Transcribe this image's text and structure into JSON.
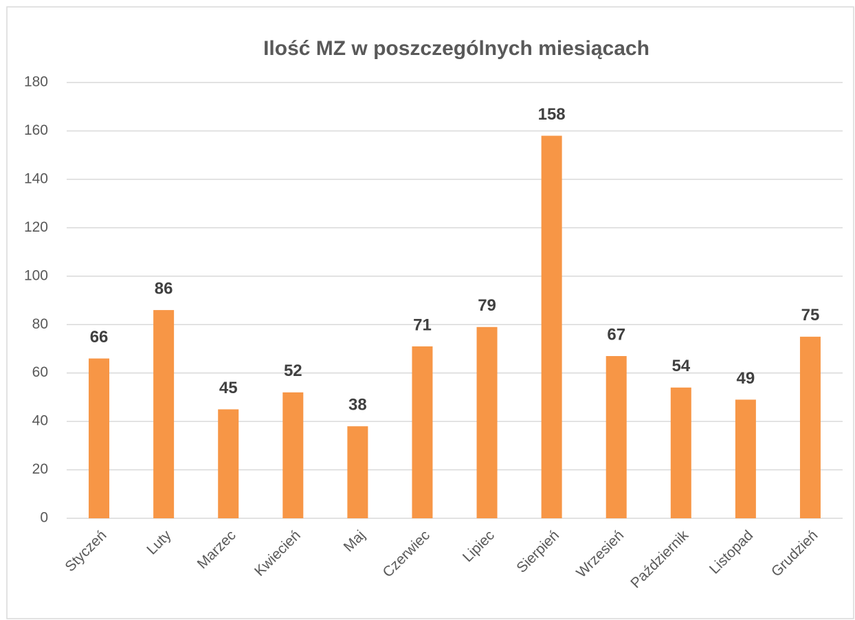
{
  "chart_data": {
    "type": "bar",
    "title": "Ilość MZ w poszczególnych miesiącach",
    "categories": [
      "Styczeń",
      "Luty",
      "Marzec",
      "Kwiecień",
      "Maj",
      "Czerwiec",
      "Lipiec",
      "Sierpień",
      "Wrzesień",
      "Październik",
      "Listopad",
      "Grudzień"
    ],
    "values": [
      66,
      86,
      45,
      52,
      38,
      71,
      79,
      158,
      67,
      54,
      49,
      75
    ],
    "color": "#f79646",
    "ylim": [
      0,
      180
    ],
    "yticks": [
      0,
      20,
      40,
      60,
      80,
      100,
      120,
      140,
      160,
      180
    ],
    "grid": true
  }
}
